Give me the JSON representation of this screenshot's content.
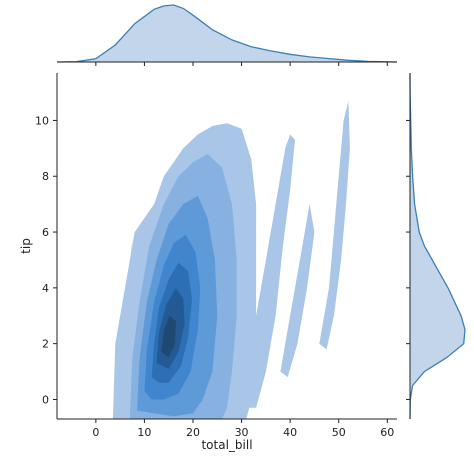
{
  "chart_data": {
    "type": "kde-joint",
    "xlabel": "total_bill",
    "ylabel": "tip",
    "xlim": [
      -8,
      62
    ],
    "ylim": [
      -0.7,
      11.7
    ],
    "x_ticks": [
      0,
      10,
      20,
      30,
      40,
      50,
      60
    ],
    "y_ticks": [
      0,
      2,
      4,
      6,
      8,
      10
    ],
    "grid": false,
    "colors": {
      "level1": "#a9c5e8",
      "level2": "#86b1e1",
      "level3": "#5f9ad8",
      "level4": "#3f86cf",
      "level5": "#2c6fb4",
      "level6": "#245a93",
      "level7": "#1f4873",
      "marginal_fill": "#c3d5ea",
      "marginal_line": "#3b7fb8",
      "axis": "#222222"
    },
    "joint_contours": [
      {
        "level": 1,
        "points": [
          [
            3.5,
            -0.7
          ],
          [
            4,
            2
          ],
          [
            6,
            4
          ],
          [
            8,
            6
          ],
          [
            12,
            7
          ],
          [
            14,
            8
          ],
          [
            18,
            9
          ],
          [
            21,
            9.5
          ],
          [
            24,
            9.8
          ],
          [
            27,
            9.9
          ],
          [
            30,
            9.7
          ],
          [
            32,
            8.6
          ],
          [
            33,
            7
          ],
          [
            33,
            5
          ],
          [
            33,
            2
          ],
          [
            32,
            0
          ],
          [
            31,
            -0.7
          ]
        ]
      },
      {
        "level": 1,
        "points": [
          [
            5,
            0.5
          ],
          [
            5.5,
            2
          ],
          [
            6.5,
            4
          ],
          [
            7.5,
            5.7
          ],
          [
            7.2,
            4.5
          ],
          [
            6.5,
            3
          ],
          [
            5.5,
            1
          ]
        ]
      },
      {
        "level": 1,
        "points": [
          [
            28,
            -0.3
          ],
          [
            30,
            1
          ],
          [
            33,
            3
          ],
          [
            35,
            5
          ],
          [
            37,
            7
          ],
          [
            39,
            9
          ],
          [
            40,
            9.5
          ],
          [
            41,
            9.3
          ],
          [
            40,
            7.5
          ],
          [
            38.5,
            5.5
          ],
          [
            37,
            3
          ],
          [
            35,
            1
          ],
          [
            33,
            -0.3
          ]
        ]
      },
      {
        "level": 1,
        "points": [
          [
            38,
            1
          ],
          [
            40,
            3
          ],
          [
            42,
            5
          ],
          [
            44,
            7
          ],
          [
            45,
            6
          ],
          [
            43.5,
            4
          ],
          [
            41.5,
            2
          ],
          [
            39.5,
            0.8
          ]
        ]
      },
      {
        "level": 1,
        "points": [
          [
            46,
            2
          ],
          [
            48,
            4
          ],
          [
            49,
            6
          ],
          [
            50,
            8
          ],
          [
            51,
            10
          ],
          [
            52,
            10.7
          ],
          [
            52.3,
            9
          ],
          [
            51.5,
            7
          ],
          [
            50.5,
            5
          ],
          [
            49,
            3
          ],
          [
            47.5,
            1.8
          ]
        ]
      },
      {
        "level": 2,
        "points": [
          [
            7,
            -0.7
          ],
          [
            7.5,
            1.5
          ],
          [
            9,
            3.5
          ],
          [
            11,
            5.5
          ],
          [
            14,
            7
          ],
          [
            17,
            8
          ],
          [
            20,
            8.5
          ],
          [
            23,
            8.8
          ],
          [
            26,
            8.3
          ],
          [
            28,
            7
          ],
          [
            29,
            5
          ],
          [
            29,
            3
          ],
          [
            28,
            1
          ],
          [
            27,
            -0.3
          ],
          [
            26,
            -0.7
          ]
        ]
      },
      {
        "level": 3,
        "points": [
          [
            8.5,
            -0.4
          ],
          [
            9,
            1.5
          ],
          [
            10.5,
            3.5
          ],
          [
            12.5,
            5
          ],
          [
            15,
            6.3
          ],
          [
            18,
            7
          ],
          [
            21,
            7.3
          ],
          [
            23,
            6.5
          ],
          [
            24.5,
            5
          ],
          [
            25,
            3
          ],
          [
            24,
            1
          ],
          [
            22,
            0
          ],
          [
            20,
            -0.5
          ],
          [
            16,
            -0.6
          ],
          [
            12,
            -0.5
          ]
        ]
      },
      {
        "level": 4,
        "points": [
          [
            10,
            0.3
          ],
          [
            10.5,
            1.8
          ],
          [
            12,
            3.5
          ],
          [
            14,
            4.8
          ],
          [
            16,
            5.6
          ],
          [
            18.5,
            5.9
          ],
          [
            20.5,
            5.3
          ],
          [
            21.5,
            4
          ],
          [
            21,
            2.5
          ],
          [
            19.5,
            1
          ],
          [
            17,
            0.2
          ],
          [
            14,
            0
          ],
          [
            11.5,
            0
          ]
        ]
      },
      {
        "level": 5,
        "points": [
          [
            11.5,
            0.8
          ],
          [
            12,
            2
          ],
          [
            13,
            3.3
          ],
          [
            15,
            4.3
          ],
          [
            17,
            4.9
          ],
          [
            19,
            4.6
          ],
          [
            19.8,
            3.6
          ],
          [
            19,
            2.2
          ],
          [
            17.5,
            1.2
          ],
          [
            15,
            0.6
          ],
          [
            13,
            0.6
          ]
        ]
      },
      {
        "level": 6,
        "points": [
          [
            12.5,
            1.3
          ],
          [
            13,
            2.4
          ],
          [
            14.5,
            3.4
          ],
          [
            16.5,
            4
          ],
          [
            18,
            3.6
          ],
          [
            18.3,
            2.7
          ],
          [
            17,
            1.7
          ],
          [
            15,
            1.1
          ]
        ]
      },
      {
        "level": 7,
        "points": [
          [
            13.5,
            1.7
          ],
          [
            14,
            2.5
          ],
          [
            15.2,
            3
          ],
          [
            16.5,
            2.8
          ],
          [
            16.3,
            2
          ],
          [
            15,
            1.5
          ]
        ]
      }
    ],
    "marginal_x": {
      "x": [
        -8,
        -4,
        0,
        4,
        8,
        12,
        14,
        16,
        18,
        20,
        24,
        28,
        32,
        36,
        40,
        44,
        48,
        52,
        56,
        62
      ],
      "density": [
        0.0,
        0.0004,
        0.004,
        0.02,
        0.045,
        0.062,
        0.066,
        0.067,
        0.063,
        0.055,
        0.038,
        0.026,
        0.018,
        0.013,
        0.009,
        0.006,
        0.004,
        0.002,
        0.0007,
        0.0
      ]
    },
    "marginal_y": {
      "y": [
        -0.7,
        0,
        0.5,
        1,
        1.5,
        2,
        2.5,
        3,
        3.5,
        4,
        4.5,
        5,
        5.5,
        6,
        7,
        8,
        9,
        10,
        11,
        11.7
      ],
      "density": [
        0.0,
        0.002,
        0.02,
        0.11,
        0.28,
        0.41,
        0.42,
        0.39,
        0.34,
        0.29,
        0.23,
        0.17,
        0.11,
        0.07,
        0.035,
        0.02,
        0.01,
        0.005,
        0.001,
        0.0
      ]
    }
  }
}
